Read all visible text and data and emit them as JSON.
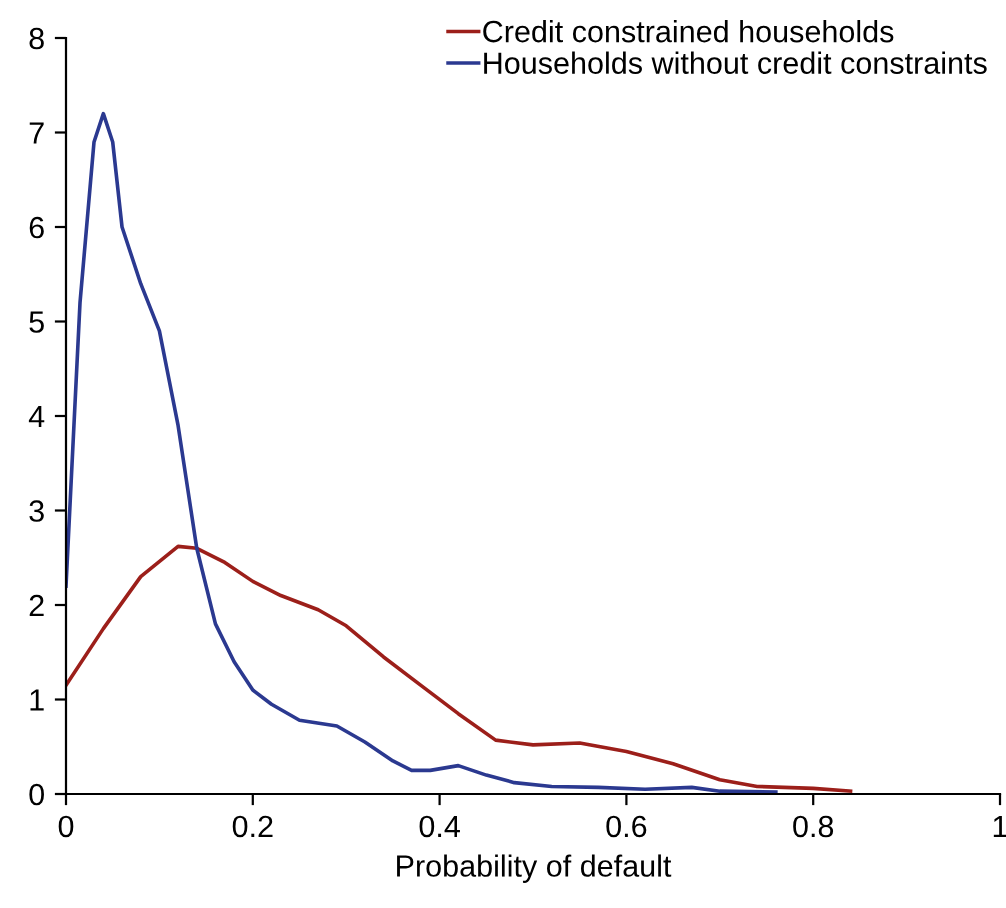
{
  "chart_data": {
    "type": "line",
    "xlabel": "Probability of default",
    "xlim": [
      0,
      1
    ],
    "xticks": [
      0,
      0.2,
      0.4,
      0.6,
      0.8,
      1
    ],
    "ylim": [
      0,
      8
    ],
    "yticks": [
      0,
      1,
      2,
      3,
      4,
      5,
      6,
      7,
      8
    ],
    "grid": false,
    "legend": "top right",
    "marker": "none",
    "line_style": "solid",
    "series": [
      {
        "name": "Credit constrained households",
        "color": "#9c1f1a",
        "x": [
          0,
          0.04,
          0.08,
          0.12,
          0.14,
          0.17,
          0.2,
          0.23,
          0.27,
          0.3,
          0.34,
          0.38,
          0.42,
          0.46,
          0.5,
          0.55,
          0.6,
          0.65,
          0.7,
          0.74,
          0.8,
          0.84
        ],
        "values": [
          1.15,
          1.75,
          2.3,
          2.62,
          2.6,
          2.45,
          2.25,
          2.1,
          1.95,
          1.78,
          1.45,
          1.15,
          0.85,
          0.57,
          0.52,
          0.54,
          0.45,
          0.32,
          0.15,
          0.08,
          0.06,
          0.03
        ]
      },
      {
        "name": "Households without credit constraints",
        "color": "#2b3990",
        "x": [
          0,
          0.015,
          0.03,
          0.04,
          0.05,
          0.06,
          0.08,
          0.1,
          0.12,
          0.14,
          0.16,
          0.18,
          0.2,
          0.22,
          0.25,
          0.29,
          0.32,
          0.35,
          0.37,
          0.39,
          0.42,
          0.45,
          0.48,
          0.52,
          0.57,
          0.62,
          0.67,
          0.7,
          0.76
        ],
        "values": [
          2.2,
          5.2,
          6.9,
          7.2,
          6.9,
          6.0,
          5.4,
          4.9,
          3.9,
          2.6,
          1.8,
          1.4,
          1.1,
          0.95,
          0.78,
          0.72,
          0.55,
          0.35,
          0.25,
          0.25,
          0.3,
          0.2,
          0.12,
          0.08,
          0.07,
          0.05,
          0.07,
          0.03,
          0.02
        ]
      }
    ]
  }
}
